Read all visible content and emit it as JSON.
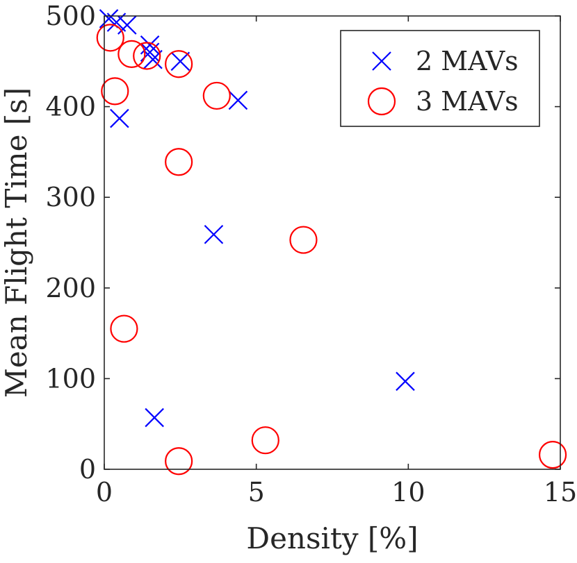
{
  "chart_data": {
    "type": "scatter",
    "title": "",
    "xlabel": "Density [%]",
    "ylabel": "Mean Flight Time [s]",
    "xlim": [
      0,
      15
    ],
    "ylim": [
      0,
      500
    ],
    "xticks": [
      0,
      5,
      10,
      15
    ],
    "yticks": [
      0,
      100,
      200,
      300,
      400,
      500
    ],
    "grid": false,
    "legend_position": "top-right",
    "series": [
      {
        "name": "2 MAVs",
        "marker": "x",
        "color": "#0000ff",
        "points": [
          [
            0.15,
            497
          ],
          [
            0.4,
            493
          ],
          [
            0.75,
            490
          ],
          [
            1.5,
            468
          ],
          [
            1.5,
            460
          ],
          [
            1.6,
            452
          ],
          [
            2.5,
            450
          ],
          [
            4.4,
            407
          ],
          [
            0.5,
            387
          ],
          [
            3.6,
            259
          ],
          [
            9.9,
            97
          ],
          [
            1.65,
            57
          ]
        ]
      },
      {
        "name": "3 MAVs",
        "marker": "o",
        "color": "#ff0000",
        "points": [
          [
            0.2,
            476
          ],
          [
            0.9,
            458
          ],
          [
            1.4,
            456
          ],
          [
            2.45,
            447
          ],
          [
            3.7,
            412
          ],
          [
            0.35,
            417
          ],
          [
            2.45,
            339
          ],
          [
            6.55,
            253
          ],
          [
            0.65,
            155
          ],
          [
            5.3,
            32
          ],
          [
            2.45,
            9
          ],
          [
            14.75,
            16
          ]
        ]
      }
    ]
  }
}
